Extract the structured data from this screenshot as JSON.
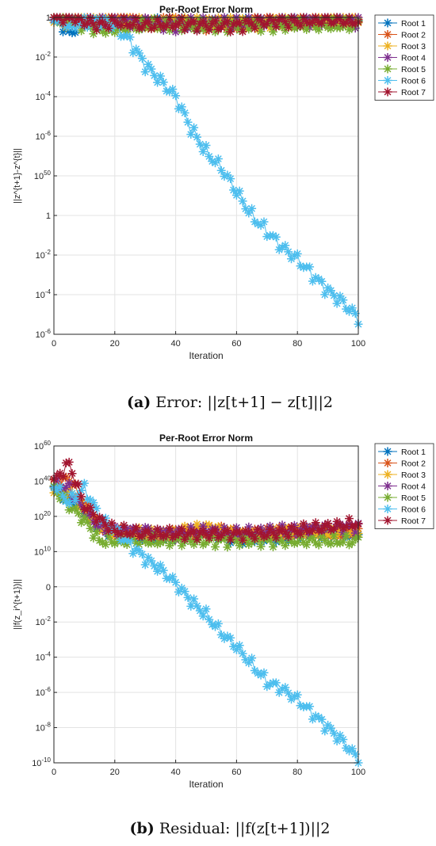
{
  "chart_data": [
    {
      "type": "line",
      "title": "Per-Root Error Norm",
      "xlabel": "Iteration",
      "ylabel": "||z^{t+1}-z^{t}||",
      "xlim": [
        0,
        100
      ],
      "x_ticks": [
        "0",
        "20",
        "40",
        "60",
        "80",
        "100"
      ],
      "y_tick_labels": [
        "10^-6",
        "10^-4",
        "10^-2",
        "1",
        "10^50",
        "10^-6",
        "10^-4",
        "10^-2",
        "1"
      ],
      "grid": true,
      "legend_position": "outside-top-right",
      "caption": {
        "label": "(a)",
        "text": "Error: ||z[t+1] − z[t]||2"
      },
      "series": [
        {
          "name": "Root 1",
          "color": "#0072BD",
          "x": [
            0,
            5,
            10,
            15,
            20,
            30,
            40,
            50,
            60,
            70,
            80,
            90,
            100
          ],
          "y_level": [
            8.1,
            7.6,
            7.9,
            8.0,
            7.9,
            7.8,
            7.9,
            7.8,
            7.9,
            7.9,
            8.0,
            7.9,
            7.95
          ]
        },
        {
          "name": "Root 2",
          "color": "#D95319",
          "x": [
            0,
            5,
            10,
            15,
            20,
            30,
            40,
            50,
            60,
            70,
            80,
            90,
            100
          ],
          "y_level": [
            8.0,
            8.1,
            7.9,
            7.9,
            8.0,
            7.9,
            7.9,
            7.8,
            7.8,
            7.9,
            7.9,
            7.95,
            7.9
          ]
        },
        {
          "name": "Root 3",
          "color": "#EDB120",
          "x": [
            0,
            5,
            10,
            15,
            20,
            30,
            40,
            50,
            60,
            70,
            80,
            90,
            100
          ],
          "y_level": [
            8.0,
            7.9,
            8.0,
            7.9,
            7.9,
            7.8,
            7.9,
            7.9,
            7.9,
            7.85,
            7.9,
            7.9,
            7.95
          ]
        },
        {
          "name": "Root 4",
          "color": "#7E2F8E",
          "x": [
            0,
            5,
            10,
            15,
            20,
            30,
            40,
            50,
            60,
            70,
            80,
            90,
            100
          ],
          "y_level": [
            8.0,
            7.95,
            7.9,
            7.85,
            7.9,
            7.9,
            7.8,
            7.9,
            7.85,
            7.9,
            7.9,
            7.95,
            7.9
          ]
        },
        {
          "name": "Root 5",
          "color": "#77AC30",
          "x": [
            0,
            5,
            10,
            15,
            20,
            30,
            40,
            50,
            60,
            70,
            80,
            90,
            100
          ],
          "y_level": [
            8.0,
            7.9,
            7.8,
            7.7,
            7.7,
            7.8,
            7.8,
            7.8,
            7.8,
            7.8,
            7.8,
            7.8,
            7.8
          ]
        },
        {
          "name": "Root 6",
          "color": "#4DBEEE",
          "x": [
            0,
            5,
            10,
            15,
            20,
            25,
            30,
            35,
            40,
            45,
            50,
            55,
            60,
            65,
            70,
            75,
            80,
            85,
            90,
            95,
            100
          ],
          "y_level": [
            8.0,
            7.8,
            7.9,
            7.9,
            7.8,
            7.4,
            6.8,
            6.4,
            6.0,
            5.2,
            4.6,
            4.2,
            3.6,
            3.0,
            2.6,
            2.2,
            1.9,
            1.5,
            1.1,
            0.8,
            0.4
          ]
        },
        {
          "name": "Root 7",
          "color": "#A2142F",
          "x": [
            0,
            5,
            10,
            15,
            20,
            30,
            40,
            50,
            60,
            70,
            80,
            90,
            100
          ],
          "y_level": [
            8.0,
            8.05,
            7.9,
            7.8,
            7.9,
            7.8,
            7.85,
            7.8,
            7.8,
            7.9,
            7.9,
            7.95,
            7.9
          ]
        }
      ]
    },
    {
      "type": "line",
      "title": "Per-Root Error Norm",
      "xlabel": "Iteration",
      "ylabel": "||f(z_i^{t+1})||",
      "xlim": [
        0,
        100
      ],
      "x_ticks": [
        "0",
        "20",
        "40",
        "60",
        "80",
        "100"
      ],
      "y_tick_labels": [
        "10^-10",
        "10^-8",
        "10^-6",
        "10^-4",
        "10^-2",
        "0",
        "10^10",
        "10^20",
        "10^40",
        "10^60"
      ],
      "grid": true,
      "legend_position": "outside-top-right",
      "caption": {
        "label": "(b)",
        "text": "Residual: ||f(z[t+1])||2"
      },
      "series": [
        {
          "name": "Root 1",
          "color": "#0072BD",
          "x": [
            0,
            5,
            10,
            15,
            20,
            30,
            40,
            50,
            60,
            70,
            80,
            90,
            100
          ],
          "y_level": [
            7.8,
            7.5,
            7.2,
            6.7,
            6.5,
            6.4,
            6.4,
            6.5,
            6.4,
            6.4,
            6.5,
            6.5,
            6.5
          ]
        },
        {
          "name": "Root 2",
          "color": "#D95319",
          "x": [
            0,
            5,
            10,
            15,
            20,
            30,
            40,
            50,
            60,
            70,
            80,
            90,
            100
          ],
          "y_level": [
            7.9,
            8.1,
            7.3,
            6.8,
            6.6,
            6.5,
            6.5,
            6.6,
            6.5,
            6.5,
            6.6,
            6.6,
            6.6
          ]
        },
        {
          "name": "Root 3",
          "color": "#EDB120",
          "x": [
            0,
            5,
            10,
            15,
            20,
            30,
            40,
            50,
            60,
            70,
            80,
            90,
            100
          ],
          "y_level": [
            7.8,
            7.7,
            7.2,
            6.7,
            6.5,
            6.5,
            6.5,
            6.7,
            6.5,
            6.5,
            6.6,
            6.5,
            6.6
          ]
        },
        {
          "name": "Root 4",
          "color": "#7E2F8E",
          "x": [
            0,
            5,
            10,
            15,
            20,
            30,
            40,
            50,
            60,
            70,
            80,
            90,
            100
          ],
          "y_level": [
            7.9,
            7.8,
            7.1,
            6.7,
            6.6,
            6.6,
            6.5,
            6.6,
            6.5,
            6.6,
            6.6,
            6.7,
            6.7
          ]
        },
        {
          "name": "Root 5",
          "color": "#77AC30",
          "x": [
            0,
            5,
            10,
            15,
            20,
            30,
            40,
            50,
            60,
            70,
            80,
            90,
            100
          ],
          "y_level": [
            7.8,
            7.3,
            6.9,
            6.3,
            6.3,
            6.3,
            6.3,
            6.3,
            6.3,
            6.3,
            6.3,
            6.3,
            6.3
          ]
        },
        {
          "name": "Root 6",
          "color": "#4DBEEE",
          "x": [
            0,
            5,
            10,
            15,
            20,
            25,
            30,
            35,
            40,
            45,
            50,
            55,
            60,
            65,
            70,
            75,
            80,
            85,
            90,
            95,
            100
          ],
          "y_level": [
            7.9,
            7.4,
            7.8,
            7.0,
            6.6,
            6.2,
            5.8,
            5.5,
            5.1,
            4.6,
            4.2,
            3.7,
            3.3,
            2.8,
            2.3,
            2.1,
            1.8,
            1.4,
            1.0,
            0.6,
            0.1
          ]
        },
        {
          "name": "Root 7",
          "color": "#A2142F",
          "x": [
            0,
            5,
            10,
            15,
            20,
            30,
            40,
            50,
            60,
            70,
            80,
            90,
            100
          ],
          "y_level": [
            8.0,
            8.5,
            7.3,
            6.9,
            6.6,
            6.5,
            6.5,
            6.5,
            6.5,
            6.5,
            6.6,
            6.7,
            6.8
          ]
        }
      ]
    }
  ]
}
